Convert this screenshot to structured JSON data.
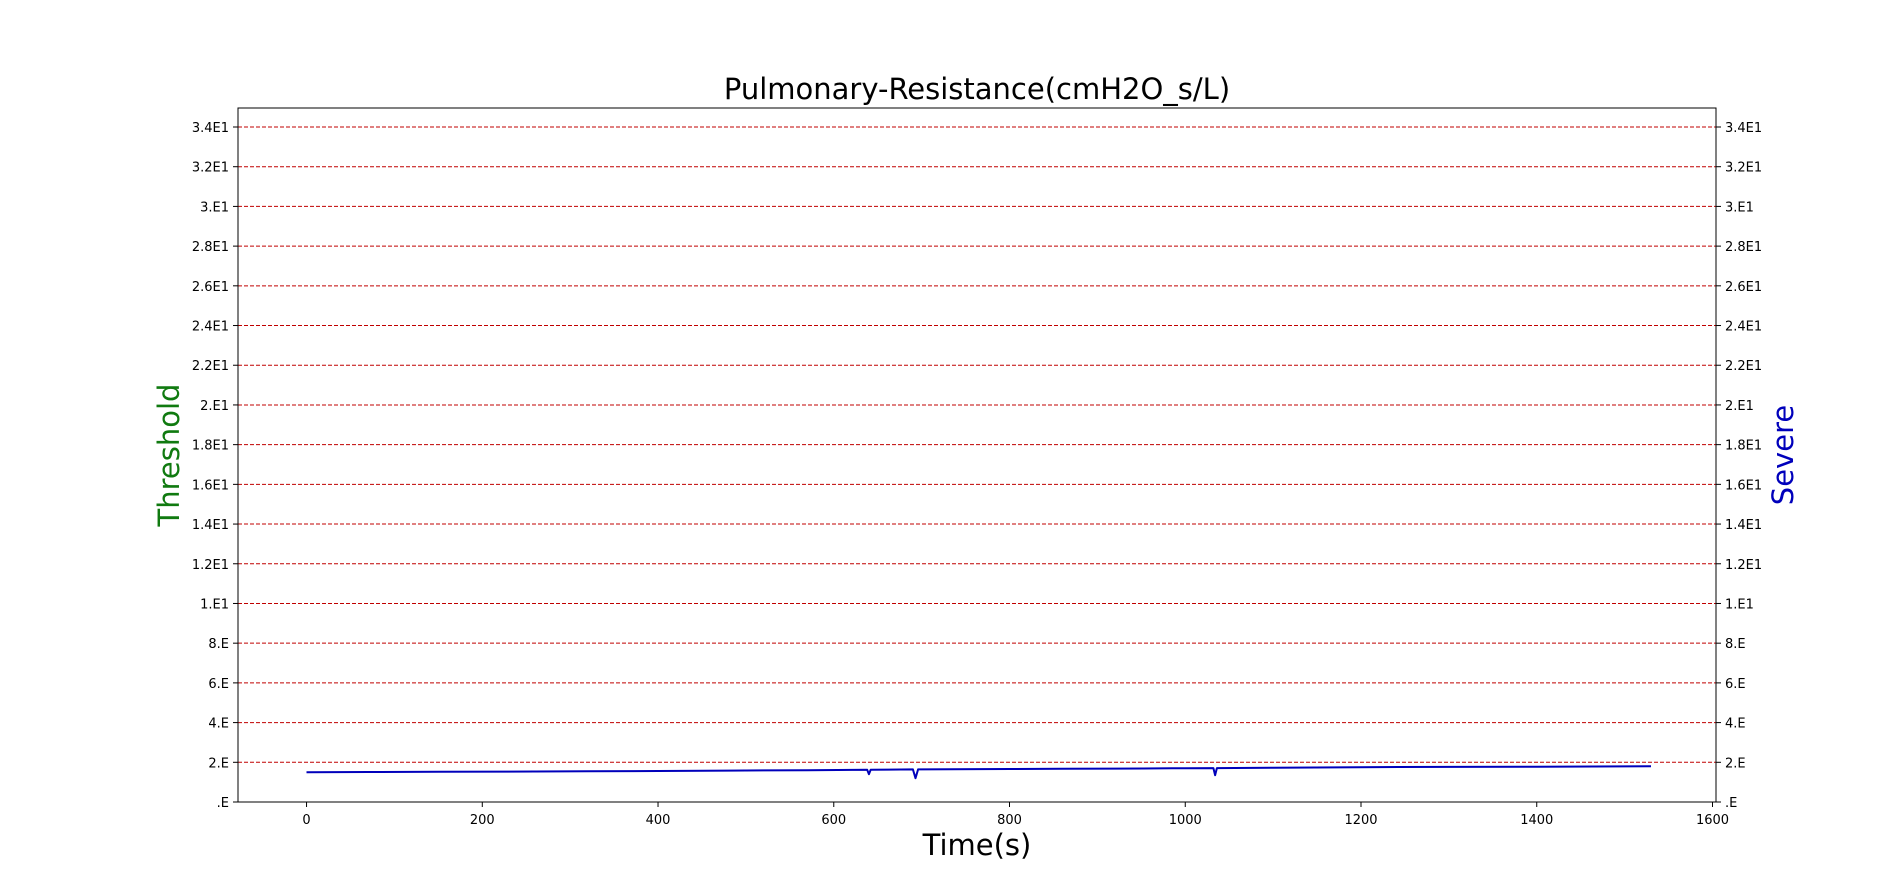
{
  "chart_data": {
    "type": "line",
    "title": "Pulmonary-Resistance(cmH2O_s/L)",
    "xlabel": "Time(s)",
    "ylabel_left": "Threshold",
    "ylabel_right": "Severe",
    "xlim": [
      -78,
      1604
    ],
    "ylim": [
      0,
      35
    ],
    "x_ticks": [
      0,
      200,
      400,
      600,
      800,
      1000,
      1200,
      1400,
      1600
    ],
    "x_tick_labels": [
      "0",
      "200",
      "400",
      "600",
      "800",
      "1000",
      "1200",
      "1400",
      "1600"
    ],
    "y_ticks": [
      0,
      2,
      4,
      6,
      8,
      10,
      12,
      14,
      16,
      18,
      20,
      22,
      24,
      26,
      28,
      30,
      32,
      34
    ],
    "y_tick_labels": [
      ".E",
      "2.E",
      "4.E",
      "6.E",
      "8.E",
      "1.E1",
      "1.2E1",
      "1.4E1",
      "1.6E1",
      "1.8E1",
      "2.E1",
      "2.2E1",
      "2.4E1",
      "2.6E1",
      "2.8E1",
      "3.E1",
      "3.2E1",
      "3.4E1"
    ],
    "grid": true,
    "colors": {
      "series": "#0000bb",
      "grid": "#c00000",
      "left_label": "#107a10",
      "right_label": "#0000bb"
    },
    "series": [
      {
        "x": [
          0,
          70,
          150,
          230,
          320,
          400,
          480,
          570,
          638,
          640,
          642,
          690,
          693,
          696,
          700,
          800,
          860,
          920,
          985,
          1000,
          1032,
          1034,
          1036,
          1100,
          1220,
          1300,
          1400,
          1530
        ],
        "y": [
          1.5,
          1.51,
          1.52,
          1.53,
          1.55,
          1.56,
          1.58,
          1.6,
          1.62,
          1.4,
          1.62,
          1.64,
          1.2,
          1.64,
          1.64,
          1.66,
          1.67,
          1.68,
          1.7,
          1.7,
          1.71,
          1.35,
          1.71,
          1.73,
          1.76,
          1.77,
          1.78,
          1.8
        ]
      }
    ]
  }
}
